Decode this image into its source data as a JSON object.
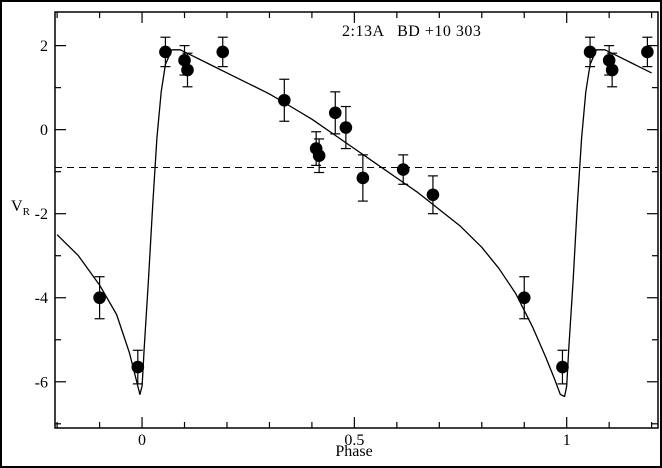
{
  "chart_data": {
    "type": "scatter",
    "title": "2:13A   BD +10 303",
    "xlabel": "Phase",
    "ylabel_base": "V",
    "ylabel_sub": "R",
    "xlim": [
      -0.205,
      1.215
    ],
    "ylim": [
      -7.1,
      2.8
    ],
    "grid": false,
    "x_major_ticks": [
      {
        "v": 0,
        "label": "0"
      },
      {
        "v": 0.5,
        "label": "0.5"
      },
      {
        "v": 1,
        "label": "1"
      }
    ],
    "x_minor_ticks": [
      -0.2,
      -0.1,
      0.1,
      0.2,
      0.3,
      0.4,
      0.6,
      0.7,
      0.8,
      0.9,
      1.1,
      1.2
    ],
    "y_major_ticks": [
      {
        "v": 2,
        "label": "2"
      },
      {
        "v": 0,
        "label": "0"
      },
      {
        "v": -2,
        "label": "-2"
      },
      {
        "v": -4,
        "label": "-4"
      },
      {
        "v": -6,
        "label": "-6"
      }
    ],
    "y_minor_ticks": [
      1,
      -1,
      -3,
      -5,
      -7
    ],
    "dashed_line_y": -0.9,
    "points": [
      {
        "phase": -0.1,
        "v": -4.0,
        "err": 0.5
      },
      {
        "phase": -0.01,
        "v": -5.65,
        "err": 0.4
      },
      {
        "phase": 0.055,
        "v": 1.85,
        "err": 0.35
      },
      {
        "phase": 0.1,
        "v": 1.65,
        "err": 0.35
      },
      {
        "phase": 0.107,
        "v": 1.42,
        "err": 0.4
      },
      {
        "phase": 0.19,
        "v": 1.85,
        "err": 0.35
      },
      {
        "phase": 0.335,
        "v": 0.7,
        "err": 0.5
      },
      {
        "phase": 0.41,
        "v": -0.45,
        "err": 0.4
      },
      {
        "phase": 0.417,
        "v": -0.62,
        "err": 0.4
      },
      {
        "phase": 0.455,
        "v": 0.4,
        "err": 0.5
      },
      {
        "phase": 0.48,
        "v": 0.05,
        "err": 0.5
      },
      {
        "phase": 0.52,
        "v": -1.15,
        "err": 0.55
      },
      {
        "phase": 0.615,
        "v": -0.95,
        "err": 0.35
      },
      {
        "phase": 0.685,
        "v": -1.55,
        "err": 0.45
      },
      {
        "phase": 0.9,
        "v": -4.0,
        "err": 0.5
      },
      {
        "phase": 0.99,
        "v": -5.65,
        "err": 0.4
      },
      {
        "phase": 1.055,
        "v": 1.85,
        "err": 0.35
      },
      {
        "phase": 1.1,
        "v": 1.65,
        "err": 0.35
      },
      {
        "phase": 1.107,
        "v": 1.42,
        "err": 0.4
      },
      {
        "phase": 1.19,
        "v": 1.85,
        "err": 0.35
      }
    ],
    "curve": [
      [
        -0.2,
        -2.5
      ],
      [
        -0.15,
        -3.0
      ],
      [
        -0.1,
        -3.7
      ],
      [
        -0.06,
        -4.4
      ],
      [
        -0.03,
        -5.3
      ],
      [
        -0.015,
        -5.9
      ],
      [
        -0.005,
        -6.3
      ],
      [
        0.0,
        -6.1
      ],
      [
        0.005,
        -5.2
      ],
      [
        0.015,
        -3.6
      ],
      [
        0.025,
        -1.8
      ],
      [
        0.035,
        -0.2
      ],
      [
        0.045,
        0.9
      ],
      [
        0.055,
        1.55
      ],
      [
        0.07,
        1.9
      ],
      [
        0.09,
        1.9
      ],
      [
        0.12,
        1.75
      ],
      [
        0.16,
        1.55
      ],
      [
        0.2,
        1.35
      ],
      [
        0.25,
        1.1
      ],
      [
        0.3,
        0.85
      ],
      [
        0.35,
        0.55
      ],
      [
        0.4,
        0.25
      ],
      [
        0.45,
        -0.1
      ],
      [
        0.5,
        -0.45
      ],
      [
        0.55,
        -0.8
      ],
      [
        0.6,
        -1.15
      ],
      [
        0.65,
        -1.5
      ],
      [
        0.7,
        -1.9
      ],
      [
        0.75,
        -2.3
      ],
      [
        0.8,
        -2.8
      ],
      [
        0.84,
        -3.3
      ],
      [
        0.88,
        -3.9
      ],
      [
        0.92,
        -4.7
      ],
      [
        0.95,
        -5.4
      ],
      [
        0.97,
        -5.9
      ],
      [
        0.985,
        -6.3
      ],
      [
        0.995,
        -6.35
      ],
      [
        1.0,
        -6.1
      ],
      [
        1.005,
        -5.2
      ],
      [
        1.015,
        -3.6
      ],
      [
        1.025,
        -1.8
      ],
      [
        1.035,
        -0.2
      ],
      [
        1.045,
        0.9
      ],
      [
        1.055,
        1.55
      ],
      [
        1.07,
        1.9
      ],
      [
        1.09,
        1.9
      ],
      [
        1.12,
        1.75
      ],
      [
        1.16,
        1.55
      ],
      [
        1.2,
        1.35
      ]
    ]
  },
  "colors": {
    "ink": "#000000",
    "background": "#ffffff"
  }
}
